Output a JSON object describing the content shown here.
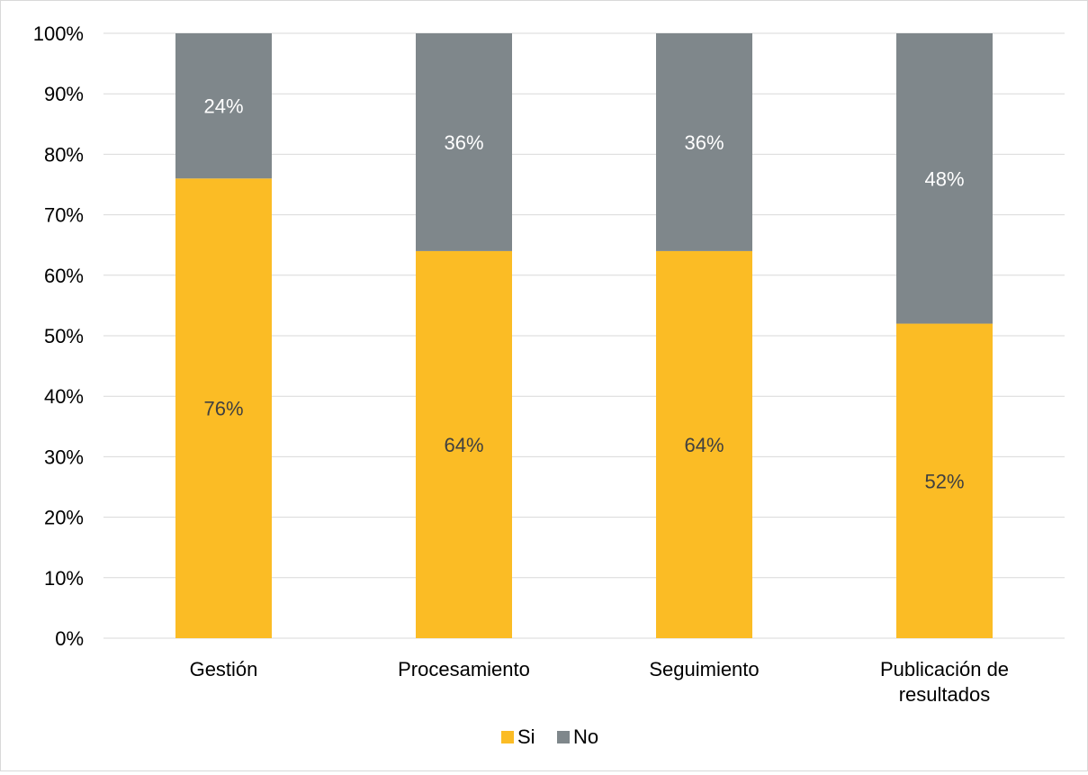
{
  "chart_data": {
    "type": "bar",
    "stacked": true,
    "title": "",
    "xlabel": "",
    "ylabel": "",
    "categories": [
      "Gestión",
      "Procesamiento",
      "Seguimiento",
      "Publicación de resultados"
    ],
    "series": [
      {
        "name": "Si",
        "values": [
          76,
          64,
          64,
          52
        ],
        "color": "#fbbc25",
        "labels": [
          "76%",
          "64%",
          "64%",
          "52%"
        ]
      },
      {
        "name": "No",
        "values": [
          24,
          36,
          36,
          48
        ],
        "color": "#7f878b",
        "labels": [
          "24%",
          "36%",
          "36%",
          "48%"
        ]
      }
    ],
    "ylim": [
      0,
      100
    ],
    "y_ticks": [
      "0%",
      "10%",
      "20%",
      "30%",
      "40%",
      "50%",
      "60%",
      "70%",
      "80%",
      "90%",
      "100%"
    ],
    "grid": true,
    "legend_position": "bottom",
    "axis_text_color": "#000000",
    "data_label_colors": {
      "Si": "#404040",
      "No": "#ffffff"
    },
    "grid_color": "#d9d9d9"
  }
}
